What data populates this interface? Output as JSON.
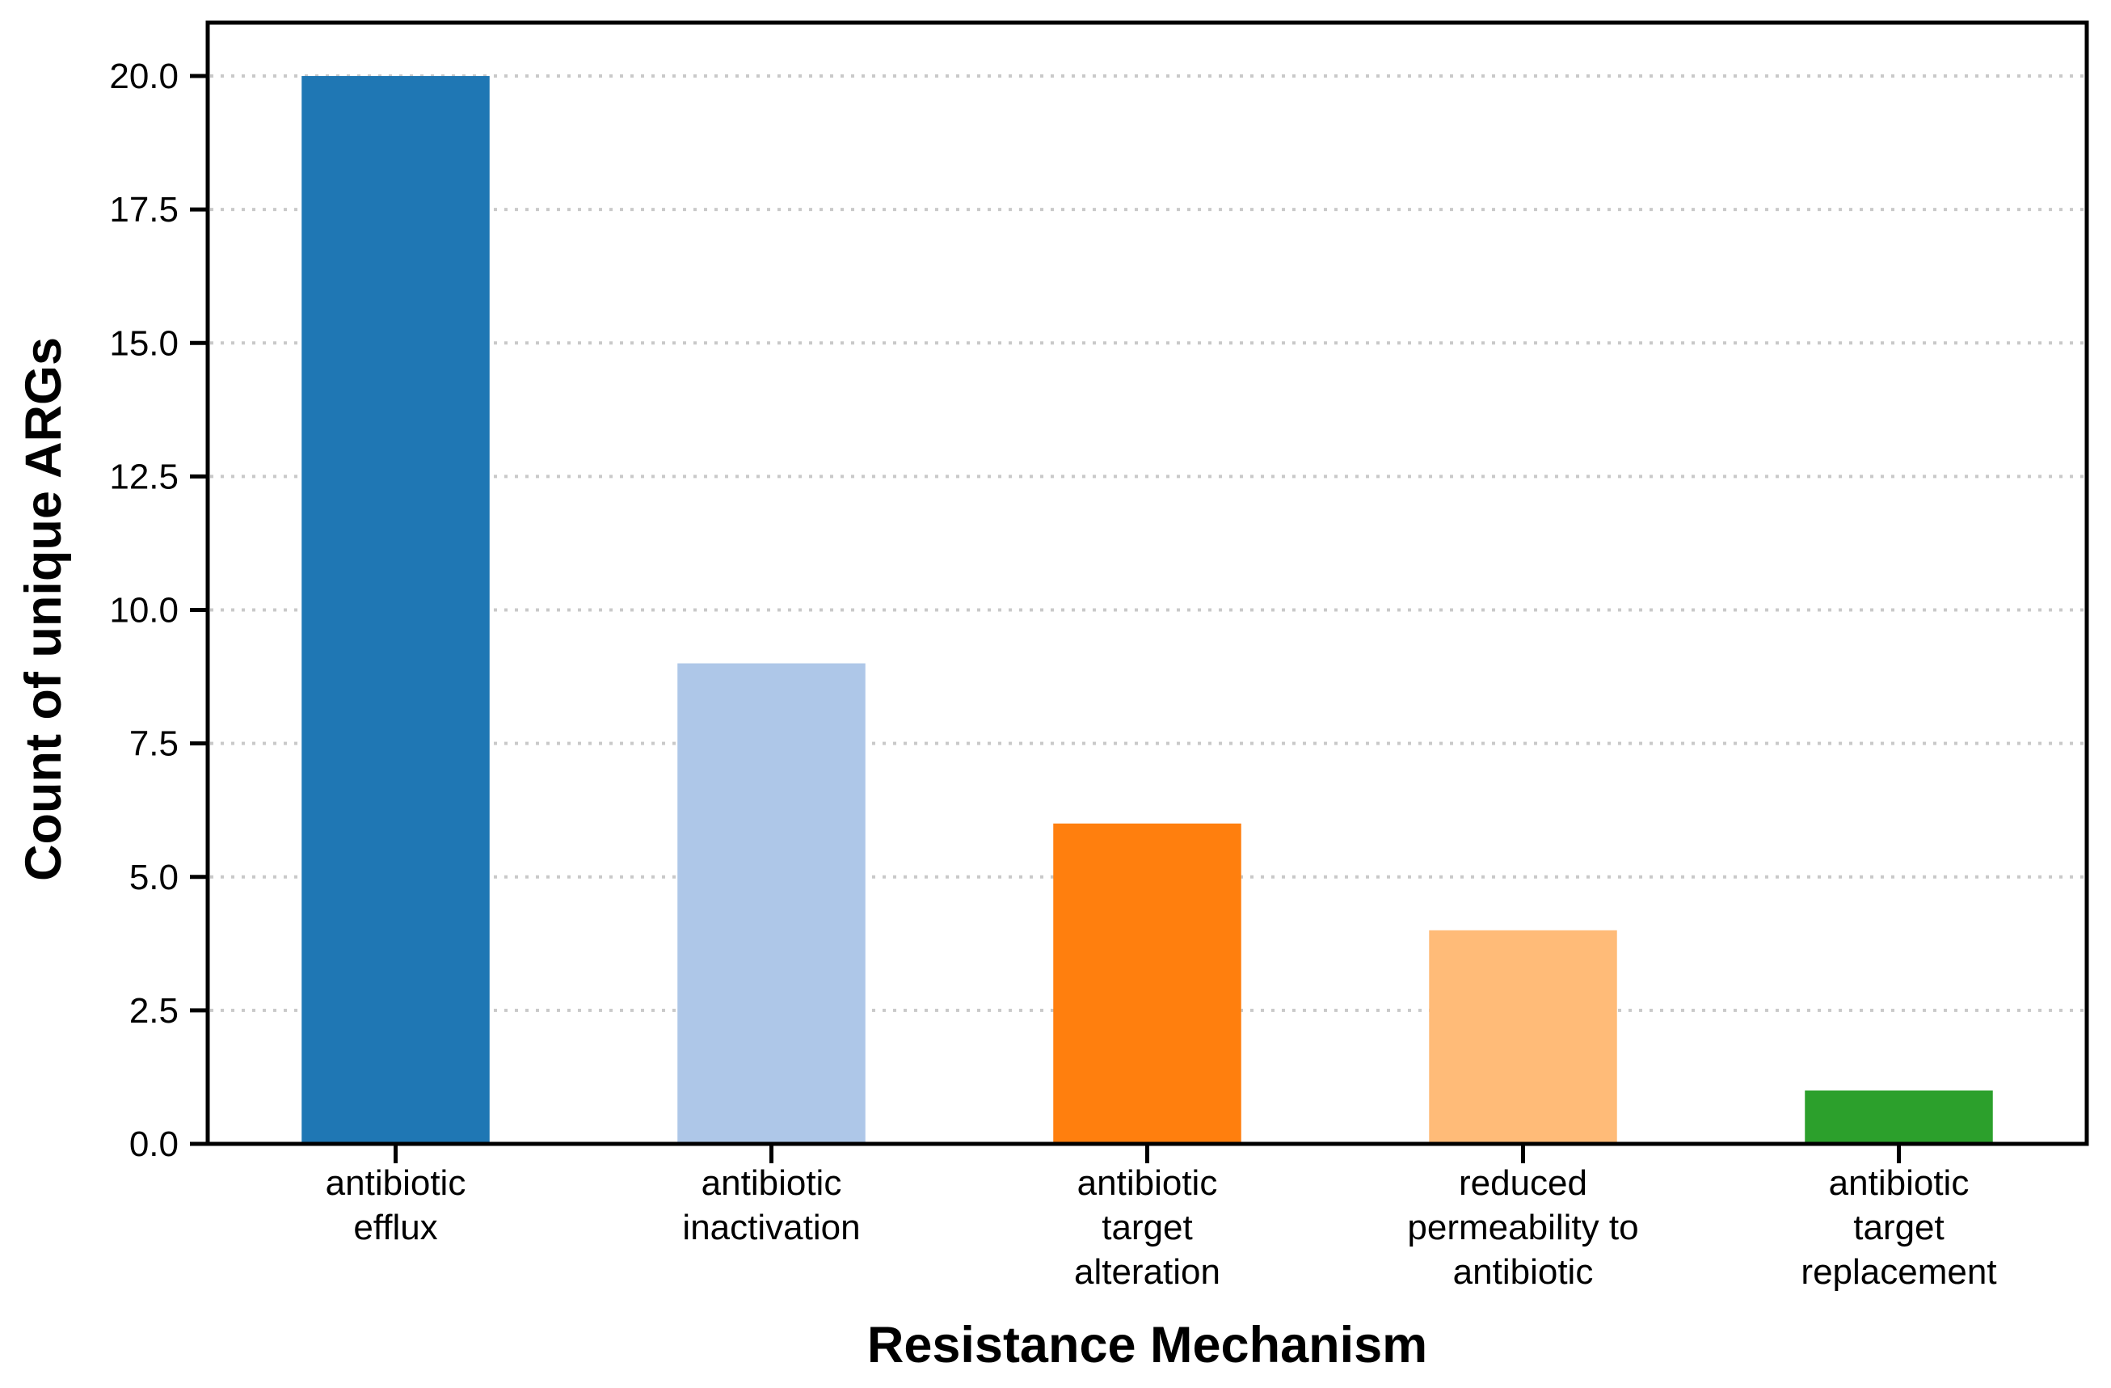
{
  "figure": {
    "background_color": "#ffffff",
    "title": ""
  },
  "chart_data": {
    "type": "bar",
    "title": "",
    "xlabel": "Resistance Mechanism",
    "ylabel": "Count of unique ARGs",
    "categories": [
      "antibiotic efflux",
      "antibiotic inactivation",
      "antibiotic target alteration",
      "reduced permeability to antibiotic",
      "antibiotic target replacement"
    ],
    "category_label_lines": [
      [
        "antibiotic",
        "efflux"
      ],
      [
        "antibiotic",
        "inactivation"
      ],
      [
        "antibiotic",
        "target",
        "alteration"
      ],
      [
        "reduced",
        "permeability to",
        "antibiotic"
      ],
      [
        "antibiotic",
        "target",
        "replacement"
      ]
    ],
    "values": [
      20,
      9,
      6,
      4,
      1
    ],
    "bar_colors": [
      "#1f77b4",
      "#aec7e8",
      "#ff7f0e",
      "#ffbb78",
      "#2ca02c"
    ],
    "ylim": [
      0,
      21
    ],
    "ytick_labels": [
      "0.0",
      "2.5",
      "5.0",
      "7.5",
      "10.0",
      "12.5",
      "15.0",
      "17.5",
      "20.0"
    ],
    "ytick_values": [
      0,
      2.5,
      5,
      7.5,
      10,
      12.5,
      15,
      17.5,
      20
    ],
    "grid": "horizontal dotted",
    "gridline_color": "#c9c9c9",
    "spine_color": "#000000",
    "legend_position": "none",
    "bar_width_fraction": 0.5
  }
}
